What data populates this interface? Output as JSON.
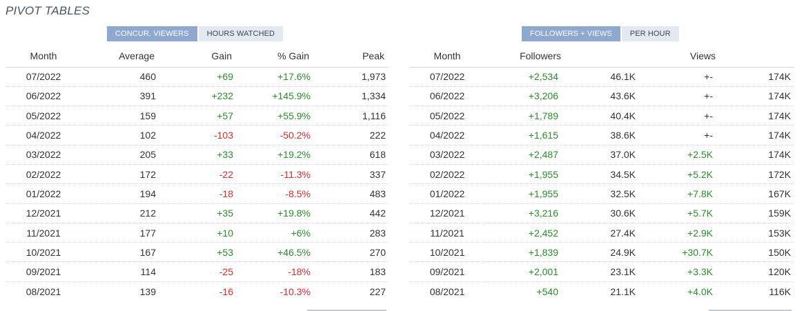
{
  "title": "PIVOT TABLES",
  "left": {
    "tabs": [
      {
        "label": "CONCUR. VIEWERS",
        "active": true
      },
      {
        "label": "HOURS WATCHED",
        "active": false
      }
    ],
    "headers": {
      "month": "Month",
      "average": "Average",
      "gain": "Gain",
      "pct_gain": "% Gain",
      "peak": "Peak"
    },
    "rows": [
      {
        "month": "07/2022",
        "average": "460",
        "gain": "+69",
        "pct_gain": "+17.6%",
        "peak": "1,973"
      },
      {
        "month": "06/2022",
        "average": "391",
        "gain": "+232",
        "pct_gain": "+145.9%",
        "peak": "1,334"
      },
      {
        "month": "05/2022",
        "average": "159",
        "gain": "+57",
        "pct_gain": "+55.9%",
        "peak": "1,116"
      },
      {
        "month": "04/2022",
        "average": "102",
        "gain": "-103",
        "pct_gain": "-50.2%",
        "peak": "222"
      },
      {
        "month": "03/2022",
        "average": "205",
        "gain": "+33",
        "pct_gain": "+19.2%",
        "peak": "618"
      },
      {
        "month": "02/2022",
        "average": "172",
        "gain": "-22",
        "pct_gain": "-11.3%",
        "peak": "337"
      },
      {
        "month": "01/2022",
        "average": "194",
        "gain": "-18",
        "pct_gain": "-8.5%",
        "peak": "483"
      },
      {
        "month": "12/2021",
        "average": "212",
        "gain": "+35",
        "pct_gain": "+19.8%",
        "peak": "442"
      },
      {
        "month": "11/2021",
        "average": "177",
        "gain": "+10",
        "pct_gain": "+6%",
        "peak": "283"
      },
      {
        "month": "10/2021",
        "average": "167",
        "gain": "+53",
        "pct_gain": "+46.5%",
        "peak": "270"
      },
      {
        "month": "09/2021",
        "average": "114",
        "gain": "-25",
        "pct_gain": "-18%",
        "peak": "183"
      },
      {
        "month": "08/2021",
        "average": "139",
        "gain": "-16",
        "pct_gain": "-10.3%",
        "peak": "227"
      }
    ]
  },
  "right": {
    "tabs": [
      {
        "label": "FOLLOWERS + VIEWS",
        "active": true
      },
      {
        "label": "PER HOUR",
        "active": false
      }
    ],
    "headers": {
      "month": "Month",
      "followers": "Followers",
      "views": "Views"
    },
    "rows": [
      {
        "month": "07/2022",
        "followers_gain": "+2,534",
        "followers_total": "46.1K",
        "views_gain": "+-",
        "views_total": "174K"
      },
      {
        "month": "06/2022",
        "followers_gain": "+3,206",
        "followers_total": "43.6K",
        "views_gain": "+-",
        "views_total": "174K"
      },
      {
        "month": "05/2022",
        "followers_gain": "+1,789",
        "followers_total": "40.4K",
        "views_gain": "+-",
        "views_total": "174K"
      },
      {
        "month": "04/2022",
        "followers_gain": "+1,615",
        "followers_total": "38.6K",
        "views_gain": "+-",
        "views_total": "174K"
      },
      {
        "month": "03/2022",
        "followers_gain": "+2,487",
        "followers_total": "37.0K",
        "views_gain": "+2.5K",
        "views_total": "174K"
      },
      {
        "month": "02/2022",
        "followers_gain": "+1,955",
        "followers_total": "34.5K",
        "views_gain": "+5.2K",
        "views_total": "172K"
      },
      {
        "month": "01/2022",
        "followers_gain": "+1,955",
        "followers_total": "32.5K",
        "views_gain": "+7.8K",
        "views_total": "167K"
      },
      {
        "month": "12/2021",
        "followers_gain": "+3,216",
        "followers_total": "30.6K",
        "views_gain": "+5.7K",
        "views_total": "159K"
      },
      {
        "month": "11/2021",
        "followers_gain": "+2,452",
        "followers_total": "27.4K",
        "views_gain": "+2.9K",
        "views_total": "153K"
      },
      {
        "month": "10/2021",
        "followers_gain": "+1,839",
        "followers_total": "24.9K",
        "views_gain": "+30.7K",
        "views_total": "150K"
      },
      {
        "month": "09/2021",
        "followers_gain": "+2,001",
        "followers_total": "23.1K",
        "views_gain": "+3.3K",
        "views_total": "120K"
      },
      {
        "month": "08/2021",
        "followers_gain": "+540",
        "followers_total": "21.1K",
        "views_gain": "+4.0K",
        "views_total": "116K"
      }
    ]
  },
  "colors": {
    "positive": "#2d8a2d",
    "negative": "#d42b2b",
    "tab_active": "#8fa8cf",
    "tab_inactive": "#e3e9f1"
  }
}
